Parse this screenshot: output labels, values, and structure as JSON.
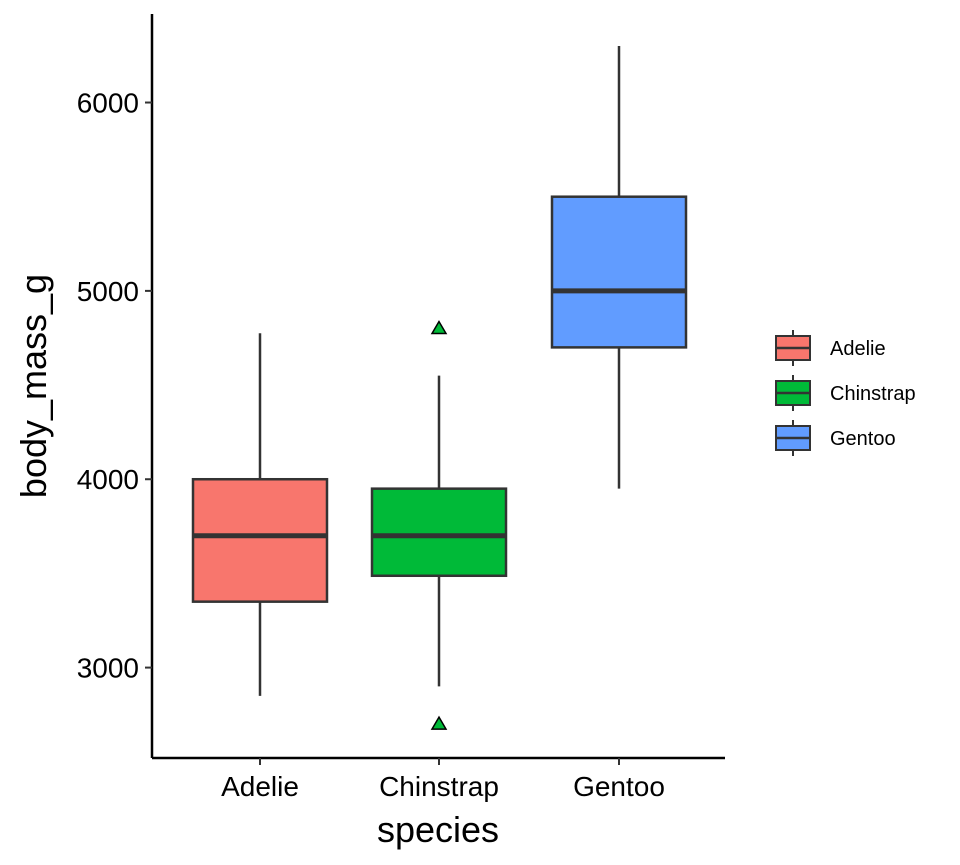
{
  "chart_data": {
    "type": "boxplot",
    "xlabel": "species",
    "ylabel": "body_mass_g",
    "categories": [
      "Adelie",
      "Chinstrap",
      "Gentoo"
    ],
    "ylim": [
      2520,
      6470
    ],
    "yticks": [
      3000,
      4000,
      5000,
      6000
    ],
    "yticks_labels": [
      "3000",
      "4000",
      "5000",
      "6000"
    ],
    "grid": false,
    "legend_position": "right",
    "series": [
      {
        "name": "Adelie",
        "color": "#F8766D",
        "whisker_low": 2850,
        "q1": 3350,
        "median": 3700,
        "q3": 4000,
        "whisker_high": 4775,
        "outliers": []
      },
      {
        "name": "Chinstrap",
        "color": "#00BA38",
        "whisker_low": 2900,
        "q1": 3487.5,
        "median": 3700,
        "q3": 3950,
        "whisker_high": 4550,
        "outliers": [
          2700,
          4800
        ]
      },
      {
        "name": "Gentoo",
        "color": "#619CFF",
        "whisker_low": 3950,
        "q1": 4700,
        "median": 5000,
        "q3": 5500,
        "whisker_high": 6300,
        "outliers": []
      }
    ],
    "outlier_marker": "triangle"
  }
}
